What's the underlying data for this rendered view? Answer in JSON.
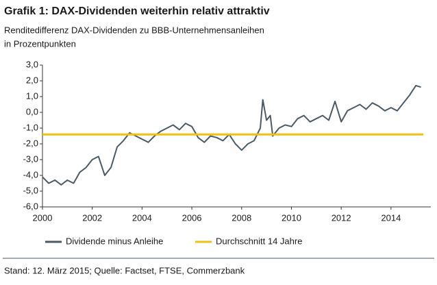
{
  "chart_data": {
    "type": "line",
    "title": "Grafik 1: DAX-Dividenden weiterhin relativ attraktiv",
    "subtitle": [
      "Renditedifferenz DAX-Dividenden zu BBB-Unternehmensanleihen",
      "in Prozentpunkten"
    ],
    "footer": "Stand: 12. März 2015; Quelle: Factset, FTSE, Commerzbank",
    "xlim": [
      2000,
      2015.6
    ],
    "xticks": [
      2000,
      2002,
      2004,
      2006,
      2008,
      2010,
      2012,
      2014
    ],
    "ylim": [
      -6,
      3
    ],
    "yticks": [
      {
        "value": 3,
        "label": "3,0"
      },
      {
        "value": 2,
        "label": "2,0"
      },
      {
        "value": 1,
        "label": "1,0"
      },
      {
        "value": 0,
        "label": "0,0"
      },
      {
        "value": -1,
        "label": "-1,0"
      },
      {
        "value": -2,
        "label": "-2,0"
      },
      {
        "value": -3,
        "label": "-3,0"
      },
      {
        "value": -4,
        "label": "-4,0"
      },
      {
        "value": -5,
        "label": "-5,0"
      },
      {
        "value": -6,
        "label": "-6,0"
      }
    ],
    "grid": false,
    "series": [
      {
        "name": "Dividende minus Anleihe",
        "color": "#4a5a66",
        "x": [
          2000,
          2000.25,
          2000.5,
          2000.75,
          2001,
          2001.25,
          2001.5,
          2001.75,
          2002,
          2002.25,
          2002.5,
          2002.75,
          2003,
          2003.25,
          2003.5,
          2003.75,
          2004,
          2004.25,
          2004.5,
          2004.75,
          2005,
          2005.25,
          2005.5,
          2005.75,
          2006,
          2006.25,
          2006.5,
          2006.75,
          2007,
          2007.25,
          2007.5,
          2007.75,
          2008,
          2008.25,
          2008.5,
          2008.75,
          2008.85,
          2009,
          2009.15,
          2009.25,
          2009.5,
          2009.75,
          2010,
          2010.25,
          2010.5,
          2010.75,
          2011,
          2011.25,
          2011.5,
          2011.75,
          2012,
          2012.25,
          2012.5,
          2012.75,
          2013,
          2013.25,
          2013.5,
          2013.75,
          2014,
          2014.25,
          2014.5,
          2014.75,
          2015,
          2015.2
        ],
        "values": [
          -4.1,
          -4.5,
          -4.3,
          -4.6,
          -4.3,
          -4.5,
          -3.8,
          -3.5,
          -3,
          -2.8,
          -4,
          -3.5,
          -2.2,
          -1.8,
          -1.3,
          -1.5,
          -1.7,
          -1.9,
          -1.5,
          -1.2,
          -1,
          -0.8,
          -1.1,
          -0.7,
          -0.9,
          -1.6,
          -1.9,
          -1.5,
          -1.6,
          -1.8,
          -1.4,
          -2,
          -2.4,
          -2,
          -1.8,
          -1,
          0.8,
          -0.5,
          -0.2,
          -1.5,
          -1,
          -0.8,
          -0.9,
          -0.4,
          -0.2,
          -0.6,
          -0.4,
          -0.2,
          -0.5,
          0.7,
          -0.6,
          0.1,
          0.3,
          0.5,
          0.2,
          0.6,
          0.4,
          0.1,
          0.3,
          0.1,
          0.6,
          1.1,
          1.7,
          1.6
        ]
      },
      {
        "name": "Durchschnitt 14 Jahre",
        "color": "#f2c010",
        "x": [
          2000,
          2015.3
        ],
        "values": [
          -1.4,
          -1.4
        ]
      }
    ]
  }
}
